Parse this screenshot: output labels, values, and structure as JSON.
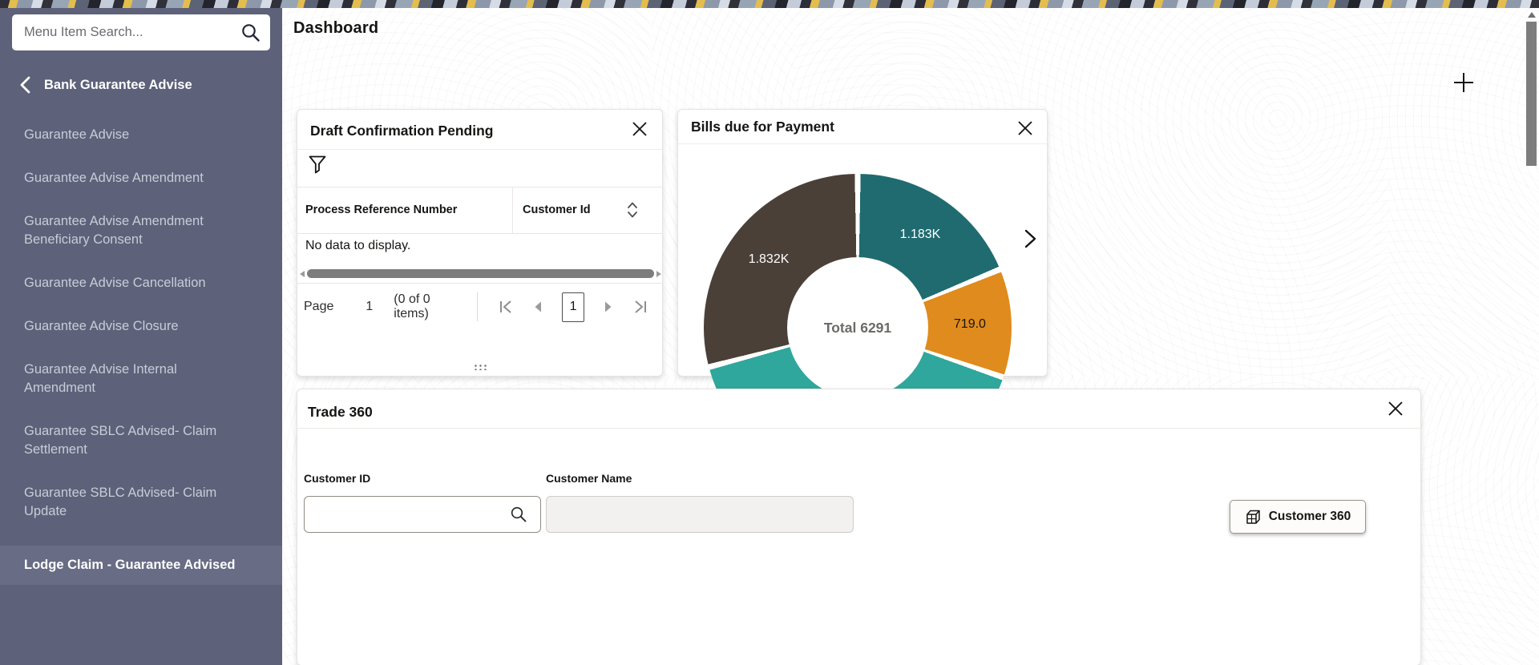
{
  "header": {
    "title": "Dashboard"
  },
  "toolbar": {
    "add_widget_icon": "plus-icon"
  },
  "sidebar": {
    "search": {
      "placeholder": "Menu Item Search...",
      "icon": "search-icon",
      "value": ""
    },
    "section": {
      "label": "Bank Guarantee Advise",
      "icon": "chevron-left-icon"
    },
    "items": [
      {
        "label": "Guarantee Advise",
        "selected": false
      },
      {
        "label": "Guarantee Advise Amendment",
        "selected": false
      },
      {
        "label": "Guarantee Advise Amendment Beneficiary Consent",
        "selected": false
      },
      {
        "label": "Guarantee Advise Cancellation",
        "selected": false
      },
      {
        "label": "Guarantee Advise Closure",
        "selected": false
      },
      {
        "label": "Guarantee Advise Internal Amendment",
        "selected": false
      },
      {
        "label": "Guarantee SBLC Advised- Claim Settlement",
        "selected": false
      },
      {
        "label": "Guarantee SBLC Advised- Claim Update",
        "selected": false
      },
      {
        "label": "Lodge Claim - Guarantee Advised",
        "selected": true
      }
    ],
    "colors": {
      "background": "#5d6179",
      "selected_background": "#686c85",
      "text": "#c9ccd8",
      "selected_text": "#ffffff"
    }
  },
  "widgets": {
    "draft_confirmation_pending": {
      "title": "Draft Confirmation Pending",
      "close_icon": "close-icon",
      "filter_icon": "filter-funnel-icon",
      "table": {
        "columns": [
          {
            "label": "Process Reference Number",
            "sortable": false
          },
          {
            "label": "Customer Id",
            "sortable": true,
            "sort_icon": "sort-icon"
          }
        ],
        "empty_message": "No data to display."
      },
      "pagination": {
        "page_label": "Page",
        "current_page": "1",
        "items_summary": "(0 of 0 items)",
        "controls": [
          "first-page-icon",
          "previous-page-icon",
          "current-page-box",
          "next-page-icon",
          "last-page-icon"
        ]
      },
      "resize_handle_icon": "drag-dots-icon"
    },
    "bills_due_for_payment": {
      "title": "Bills due for Payment",
      "close_icon": "close-icon",
      "next_icon": "chevron-right-icon"
    },
    "trade_360": {
      "title": "Trade 360",
      "close_icon": "close-icon",
      "fields": [
        {
          "label": "Customer ID",
          "value": "",
          "search_icon": true,
          "disabled": false
        },
        {
          "label": "Customer Name",
          "value": "",
          "search_icon": false,
          "disabled": true
        }
      ],
      "customer360_button": {
        "label": "Customer 360",
        "icon": "cube-360-icon"
      }
    }
  },
  "chart_data": {
    "type": "pie",
    "variant": "donut",
    "title": "Bills due for Payment",
    "center_label": "Total 6291",
    "total": 6291,
    "start_angle_deg": 0,
    "direction": "clockwise",
    "inner_radius_ratio": 0.46,
    "legend": "none",
    "segments": [
      {
        "label": "1.183K",
        "value": 1183,
        "color": "#206b70",
        "label_color": "#ffffff"
      },
      {
        "label": "719.0",
        "value": 719,
        "color": "#e08b1d",
        "label_color": "#161513"
      },
      {
        "label": "",
        "value": 2557,
        "color": "#2fa79c",
        "label_color": "#ffffff"
      },
      {
        "label": "1.832K",
        "value": 1832,
        "color": "#4a4038",
        "label_color": "#ffffff"
      }
    ]
  }
}
